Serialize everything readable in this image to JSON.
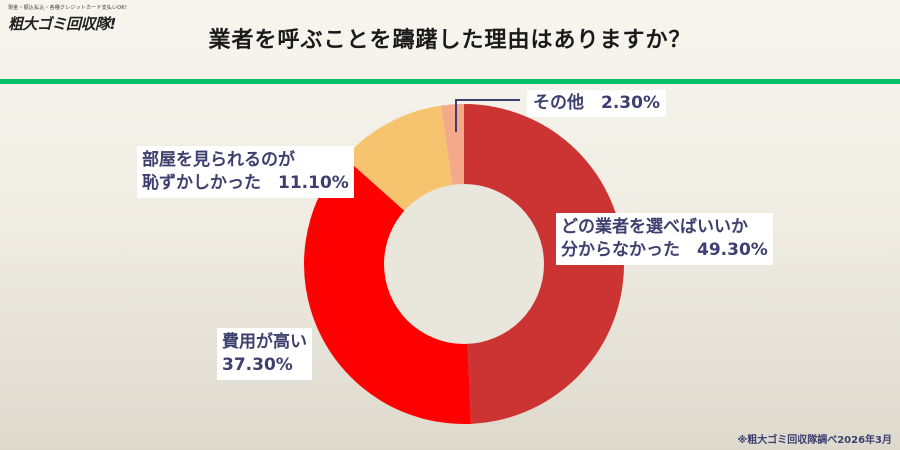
{
  "logo": {
    "tagline": "現金・振込払込・各種クレジットカード支払いOK!",
    "name": "粗大ゴミ回収隊!"
  },
  "title": "業者を呼ぶことを躊躇した理由はありますか？",
  "labels": {
    "l0": "どの業者を選べばいいか\n分からなかった　49.30%",
    "l1": "費用が高い\n37.30%",
    "l2": "部屋を見られるのが\n恥ずかしかった　11.10%",
    "l3": "その他　2.30%"
  },
  "footnote": "※粗大ゴミ回収隊調べ2026年3月",
  "colors": {
    "accent_line": "#06c166",
    "label_text": "#3d3f6e"
  },
  "chart_data": {
    "type": "pie",
    "subtype": "donut",
    "title": "業者を呼ぶことを躊躇した理由はありますか？",
    "categories": [
      "どの業者を選べばいいか分からなかった",
      "費用が高い",
      "部屋を見られるのが恥ずかしかった",
      "その他"
    ],
    "values": [
      49.3,
      37.3,
      11.1,
      2.3
    ],
    "unit": "%",
    "colors": [
      "#cc3333",
      "#ff0000",
      "#f6c46e",
      "#f3a98a"
    ],
    "start_angle": "12 o'clock, clockwise",
    "legend": "none (direct labels)"
  }
}
